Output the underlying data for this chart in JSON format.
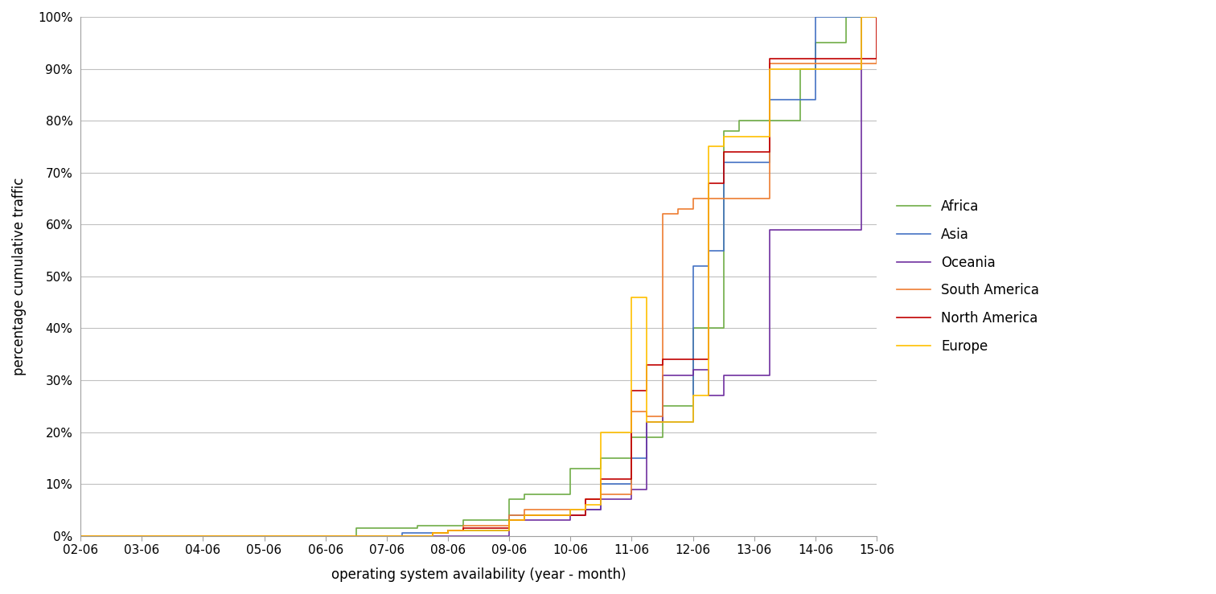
{
  "xlabel": "operating system availability (year - month)",
  "ylabel": "percentage cumulative traffic",
  "x_labels": [
    "02-06",
    "03-06",
    "04-06",
    "05-06",
    "06-06",
    "07-06",
    "08-06",
    "09-06",
    "10-06",
    "11-06",
    "12-06",
    "13-06",
    "14-06",
    "15-06"
  ],
  "x_tick_positions": [
    0,
    1,
    2,
    3,
    4,
    5,
    6,
    7,
    8,
    9,
    10,
    11,
    12,
    13
  ],
  "series": {
    "Africa": {
      "color": "#70ad47",
      "xy": [
        [
          0,
          0
        ],
        [
          4,
          0
        ],
        [
          4.5,
          1.5
        ],
        [
          5,
          1.5
        ],
        [
          5.5,
          2
        ],
        [
          6,
          2
        ],
        [
          6.25,
          3
        ],
        [
          7,
          7
        ],
        [
          7.25,
          8
        ],
        [
          8,
          13
        ],
        [
          8.5,
          15
        ],
        [
          9,
          19
        ],
        [
          9.25,
          19
        ],
        [
          9.5,
          25
        ],
        [
          10,
          40
        ],
        [
          10.25,
          40
        ],
        [
          10.5,
          78
        ],
        [
          10.75,
          80
        ],
        [
          11.5,
          80
        ],
        [
          11.75,
          90
        ],
        [
          12,
          95
        ],
        [
          12.25,
          95
        ],
        [
          12.5,
          100
        ],
        [
          13,
          100
        ]
      ]
    },
    "Asia": {
      "color": "#4472c4",
      "xy": [
        [
          0,
          0
        ],
        [
          5,
          0
        ],
        [
          5.25,
          0.5
        ],
        [
          6,
          1
        ],
        [
          6.25,
          1
        ],
        [
          7,
          4
        ],
        [
          7.25,
          4
        ],
        [
          8,
          5
        ],
        [
          8.25,
          5
        ],
        [
          8.5,
          10
        ],
        [
          9,
          15
        ],
        [
          9.25,
          22
        ],
        [
          9.5,
          22
        ],
        [
          10,
          52
        ],
        [
          10.25,
          55
        ],
        [
          10.5,
          72
        ],
        [
          11,
          72
        ],
        [
          11.25,
          84
        ],
        [
          11.75,
          84
        ],
        [
          12,
          100
        ],
        [
          13,
          100
        ]
      ]
    },
    "Oceania": {
      "color": "#7030a0",
      "xy": [
        [
          0,
          0
        ],
        [
          6.5,
          0
        ],
        [
          7,
          3
        ],
        [
          7.25,
          3
        ],
        [
          8,
          4
        ],
        [
          8.25,
          5
        ],
        [
          8.5,
          7
        ],
        [
          9,
          9
        ],
        [
          9.25,
          22
        ],
        [
          9.5,
          31
        ],
        [
          10,
          32
        ],
        [
          10.25,
          27
        ],
        [
          10.5,
          31
        ],
        [
          11,
          31
        ],
        [
          11.25,
          59
        ],
        [
          12.5,
          59
        ],
        [
          12.75,
          100
        ],
        [
          13,
          100
        ]
      ]
    },
    "South America": {
      "color": "#ed7d31",
      "xy": [
        [
          0,
          0
        ],
        [
          5.5,
          0
        ],
        [
          5.75,
          0.5
        ],
        [
          6,
          1
        ],
        [
          6.25,
          2
        ],
        [
          7,
          4
        ],
        [
          7.25,
          5
        ],
        [
          8,
          5
        ],
        [
          8.25,
          7
        ],
        [
          8.5,
          8
        ],
        [
          9,
          24
        ],
        [
          9.25,
          23
        ],
        [
          9.5,
          62
        ],
        [
          9.75,
          63
        ],
        [
          10,
          65
        ],
        [
          10.25,
          65
        ],
        [
          11,
          65
        ],
        [
          11.25,
          91
        ],
        [
          12.75,
          91
        ],
        [
          13,
          100
        ]
      ]
    },
    "North America": {
      "color": "#c00000",
      "xy": [
        [
          0,
          0
        ],
        [
          5.5,
          0
        ],
        [
          5.75,
          0.5
        ],
        [
          6,
          1
        ],
        [
          6.25,
          1.5
        ],
        [
          7,
          3
        ],
        [
          7.25,
          4
        ],
        [
          8,
          4
        ],
        [
          8.25,
          7
        ],
        [
          8.5,
          11
        ],
        [
          9,
          28
        ],
        [
          9.25,
          33
        ],
        [
          9.5,
          34
        ],
        [
          10,
          34
        ],
        [
          10.25,
          68
        ],
        [
          10.5,
          74
        ],
        [
          11,
          74
        ],
        [
          11.25,
          92
        ],
        [
          12.75,
          92
        ],
        [
          13,
          100
        ]
      ]
    },
    "Europe": {
      "color": "#ffc000",
      "xy": [
        [
          0,
          0
        ],
        [
          5.5,
          0
        ],
        [
          5.75,
          0.5
        ],
        [
          6,
          1
        ],
        [
          6.25,
          1
        ],
        [
          7,
          3
        ],
        [
          7.25,
          4
        ],
        [
          8,
          5
        ],
        [
          8.25,
          6
        ],
        [
          8.5,
          20
        ],
        [
          9,
          46
        ],
        [
          9.25,
          22
        ],
        [
          9.5,
          22
        ],
        [
          10,
          27
        ],
        [
          10.25,
          75
        ],
        [
          10.5,
          77
        ],
        [
          11,
          77
        ],
        [
          11.25,
          90
        ],
        [
          12.5,
          90
        ],
        [
          12.75,
          100
        ],
        [
          13,
          100
        ]
      ]
    }
  },
  "ylim": [
    0,
    100
  ],
  "xlim": [
    0,
    13
  ],
  "yticks": [
    0,
    10,
    20,
    30,
    40,
    50,
    60,
    70,
    80,
    90,
    100
  ],
  "ytick_labels": [
    "0%",
    "10%",
    "20%",
    "30%",
    "40%",
    "50%",
    "60%",
    "70%",
    "80%",
    "90%",
    "100%"
  ],
  "legend_order": [
    "Africa",
    "Asia",
    "Oceania",
    "South America",
    "North America",
    "Europe"
  ],
  "background_color": "#ffffff",
  "grid_color": "#c0c0c0"
}
